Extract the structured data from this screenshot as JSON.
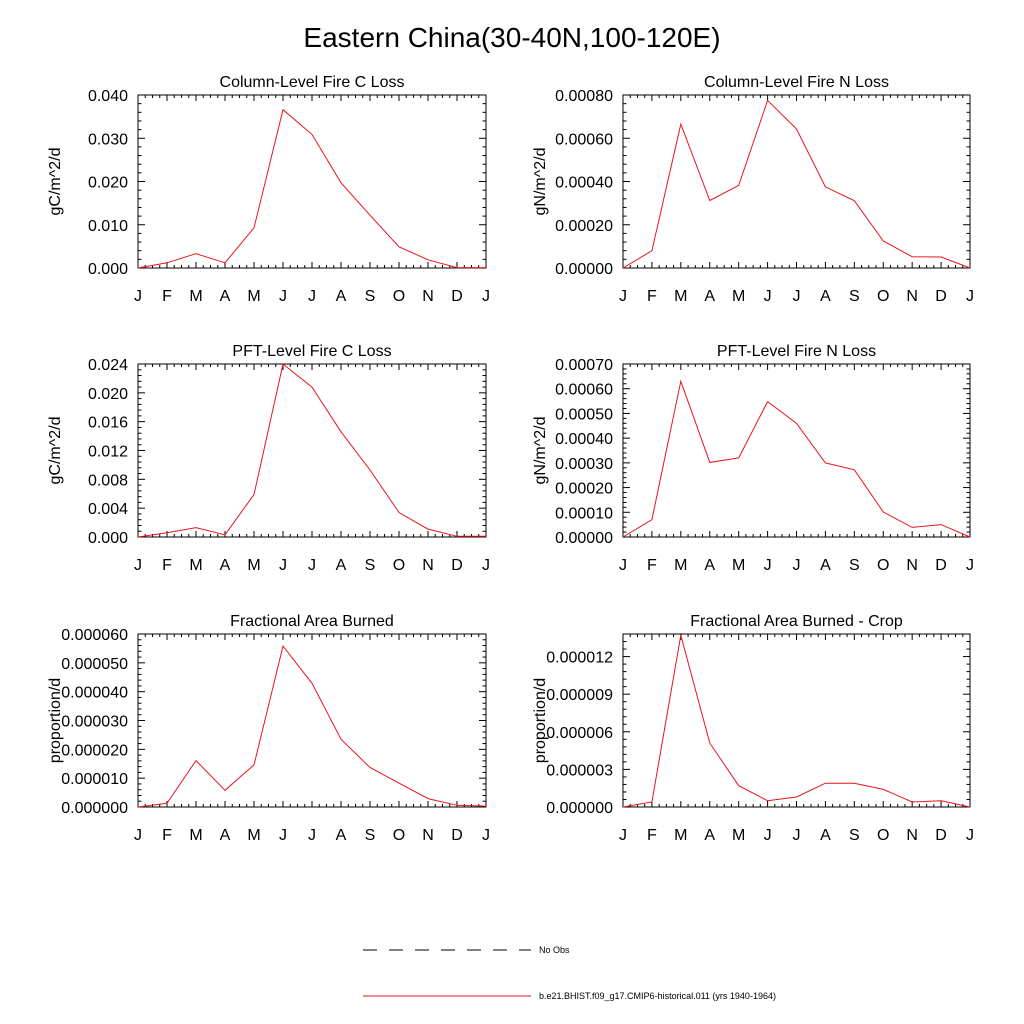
{
  "page": {
    "title": "Eastern China(30-40N,100-120E)"
  },
  "chart_data": [
    {
      "type": "line",
      "title": "Column-Level Fire C Loss",
      "ylabel": "gC/m^2/d",
      "xlabel": "",
      "categories": [
        "J",
        "F",
        "M",
        "A",
        "M",
        "J",
        "J",
        "A",
        "S",
        "O",
        "N",
        "D",
        "J"
      ],
      "ylim": [
        0,
        0.04
      ],
      "yticks": [
        "0.000",
        "0.010",
        "0.020",
        "0.030",
        "0.040"
      ],
      "yticks_values": [
        0,
        0.01,
        0.02,
        0.03,
        0.04
      ],
      "series": [
        {
          "color": "#e8141b",
          "values": [
            0.0,
            0.0012,
            0.0033,
            0.0012,
            0.0093,
            0.0366,
            0.0309,
            0.0197,
            0.0122,
            0.0049,
            0.0019,
            0.0001,
            0.0001
          ]
        }
      ]
    },
    {
      "type": "line",
      "title": "Column-Level Fire N Loss",
      "ylabel": "gN/m^2/d",
      "xlabel": "",
      "categories": [
        "J",
        "F",
        "M",
        "A",
        "M",
        "J",
        "J",
        "A",
        "S",
        "O",
        "N",
        "D",
        "J"
      ],
      "ylim": [
        0,
        0.0008
      ],
      "yticks": [
        "0.00000",
        "0.00020",
        "0.00040",
        "0.00060",
        "0.00080"
      ],
      "yticks_values": [
        0,
        0.0002,
        0.0004,
        0.0006,
        0.0008
      ],
      "series": [
        {
          "color": "#e8141b",
          "values": [
            0.0,
            8e-05,
            0.000665,
            0.000312,
            0.000382,
            0.000775,
            0.000643,
            0.000375,
            0.000311,
            0.000125,
            5.2e-05,
            5.1e-05,
            0.0
          ]
        }
      ]
    },
    {
      "type": "line",
      "title": "PFT-Level Fire C Loss",
      "ylabel": "gC/m^2/d",
      "xlabel": "",
      "categories": [
        "J",
        "F",
        "M",
        "A",
        "M",
        "J",
        "J",
        "A",
        "S",
        "O",
        "N",
        "D",
        "J"
      ],
      "ylim": [
        0,
        0.024
      ],
      "yticks": [
        "0.000",
        "0.004",
        "0.008",
        "0.012",
        "0.016",
        "0.020",
        "0.024"
      ],
      "yticks_values": [
        0,
        0.004,
        0.008,
        0.012,
        0.016,
        0.02,
        0.024
      ],
      "series": [
        {
          "color": "#e8141b",
          "values": [
            0.0,
            0.0006,
            0.0013,
            0.0003,
            0.0059,
            0.024,
            0.0208,
            0.0146,
            0.0093,
            0.0034,
            0.0011,
            0.0001,
            0.0001
          ]
        }
      ]
    },
    {
      "type": "line",
      "title": "PFT-Level Fire N Loss",
      "ylabel": "gN/m^2/d",
      "xlabel": "",
      "categories": [
        "J",
        "F",
        "M",
        "A",
        "M",
        "J",
        "J",
        "A",
        "S",
        "O",
        "N",
        "D",
        "J"
      ],
      "ylim": [
        0,
        0.0007
      ],
      "yticks": [
        "0.00000",
        "0.00010",
        "0.00020",
        "0.00030",
        "0.00040",
        "0.00050",
        "0.00060",
        "0.00070"
      ],
      "yticks_values": [
        0,
        0.0001,
        0.0002,
        0.0003,
        0.0004,
        0.0005,
        0.0006,
        0.0007
      ],
      "series": [
        {
          "color": "#e8141b",
          "values": [
            0.0,
            7e-05,
            0.00063,
            0.000302,
            0.00032,
            0.000548,
            0.00046,
            0.0003,
            0.000272,
            0.000101,
            3.9e-05,
            5e-05,
            0.0
          ]
        }
      ]
    },
    {
      "type": "line",
      "title": "Fractional Area Burned",
      "ylabel": "proportion/d",
      "xlabel": "",
      "categories": [
        "J",
        "F",
        "M",
        "A",
        "M",
        "J",
        "J",
        "A",
        "S",
        "O",
        "N",
        "D",
        "J"
      ],
      "ylim": [
        0,
        6e-05
      ],
      "yticks": [
        "0.000000",
        "0.000010",
        "0.000020",
        "0.000030",
        "0.000040",
        "0.000050",
        "0.000060"
      ],
      "yticks_values": [
        0,
        1e-05,
        2e-05,
        3e-05,
        4e-05,
        5e-05,
        6e-05
      ],
      "series": [
        {
          "color": "#e8141b",
          "values": [
            0.0,
            1.3e-06,
            1.61e-05,
            5.8e-06,
            1.46e-05,
            5.58e-05,
            4.29e-05,
            2.35e-05,
            1.37e-05,
            8.3e-06,
            2.9e-06,
            6e-07,
            3e-07
          ]
        }
      ]
    },
    {
      "type": "line",
      "title": "Fractional Area Burned - Crop",
      "ylabel": "proportion/d",
      "xlabel": "",
      "categories": [
        "J",
        "F",
        "M",
        "A",
        "M",
        "J",
        "J",
        "A",
        "S",
        "O",
        "N",
        "D",
        "J"
      ],
      "ylim": [
        0,
        1.38e-05
      ],
      "yticks": [
        "0.000000",
        "0.000003",
        "0.000006",
        "0.000009",
        "0.000012"
      ],
      "yticks_values": [
        0,
        3e-06,
        6e-06,
        9e-06,
        1.2e-05
      ],
      "series": [
        {
          "color": "#e8141b",
          "values": [
            0.0,
            4e-07,
            1.37e-05,
            5.1e-06,
            1.7e-06,
            5e-07,
            8e-07,
            1.9e-06,
            1.9e-06,
            1.4e-06,
            4e-07,
            5e-07,
            0.0
          ]
        }
      ]
    }
  ],
  "legend": {
    "items": [
      {
        "label": "No Obs",
        "color": "#000000",
        "style": "dashed"
      },
      {
        "label": "b.e21.BHIST.f09_g17.CMIP6-historical.011 (yrs 1940-1964)",
        "color": "#e8141b",
        "style": "solid"
      }
    ]
  }
}
